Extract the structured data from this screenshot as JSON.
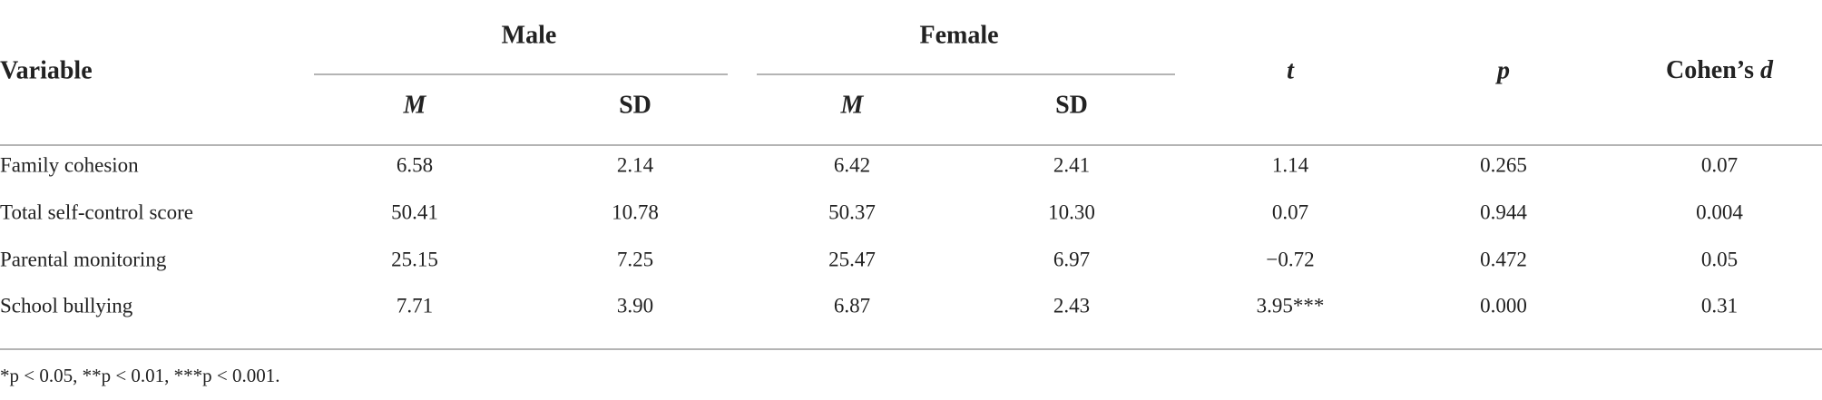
{
  "table": {
    "header": {
      "variable": "Variable",
      "groups": [
        "Male",
        "Female"
      ],
      "subheaders": [
        "M",
        "SD",
        "M",
        "SD"
      ],
      "t": "t",
      "p": "p",
      "cohens_label": "Cohen’s",
      "cohens_symbol": "d"
    },
    "rows": [
      [
        "Family cohesion",
        "6.58",
        "2.14",
        "6.42",
        "2.41",
        "1.14",
        "0.265",
        "0.07"
      ],
      [
        "Total self-control score",
        "50.41",
        "10.78",
        "50.37",
        "10.30",
        "0.07",
        "0.944",
        "0.004"
      ],
      [
        "Parental monitoring",
        "25.15",
        "7.25",
        "25.47",
        "6.97",
        "−0.72",
        "0.472",
        "0.05"
      ],
      [
        "School bullying",
        "7.71",
        "3.90",
        "6.87",
        "2.43",
        "3.95***",
        "0.000",
        "0.31"
      ]
    ],
    "footnote": "*p < 0.05, **p < 0.01, ***p < 0.001."
  }
}
